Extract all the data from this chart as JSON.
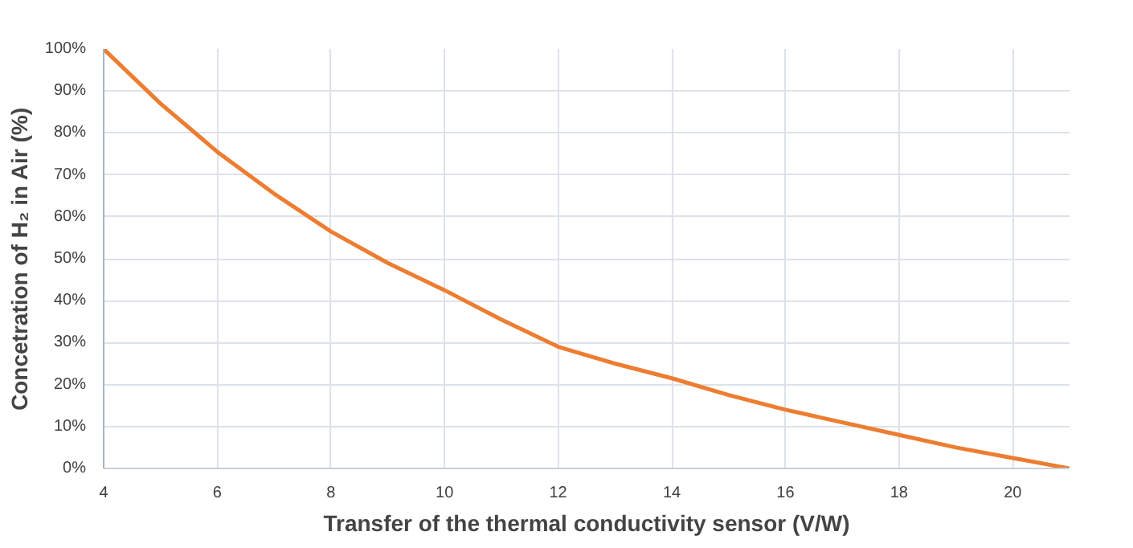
{
  "chart_data": {
    "type": "line",
    "xlabel": "Transfer of the thermal conductivity sensor (V/W)",
    "ylabel": "Concetration of H₂ in Air (%)",
    "x": [
      4,
      5,
      6,
      7,
      8,
      9,
      10,
      11,
      12,
      13,
      14,
      15,
      16,
      17,
      18,
      19,
      20,
      21
    ],
    "series": [
      {
        "color": "#ed7d31",
        "values": [
          100,
          87,
          75.5,
          65.5,
          56.5,
          49,
          42.5,
          35.5,
          29,
          25,
          21.5,
          17.5,
          14,
          11,
          8,
          5,
          2.5,
          0
        ]
      }
    ],
    "xlim": [
      4,
      21
    ],
    "ylim": [
      0,
      100
    ],
    "xticks": [
      4,
      6,
      8,
      10,
      12,
      14,
      16,
      18,
      20
    ],
    "yticks": [
      {
        "value": 0,
        "label": "0%"
      },
      {
        "value": 10,
        "label": "10%"
      },
      {
        "value": 20,
        "label": "20%"
      },
      {
        "value": 30,
        "label": "30%"
      },
      {
        "value": 40,
        "label": "40%"
      },
      {
        "value": 50,
        "label": "50%"
      },
      {
        "value": 60,
        "label": "60%"
      },
      {
        "value": 70,
        "label": "70%"
      },
      {
        "value": 80,
        "label": "80%"
      },
      {
        "value": 90,
        "label": "90%"
      },
      {
        "value": 100,
        "label": "100%"
      }
    ],
    "grid": true,
    "marker": "none",
    "line_style": "solid"
  }
}
